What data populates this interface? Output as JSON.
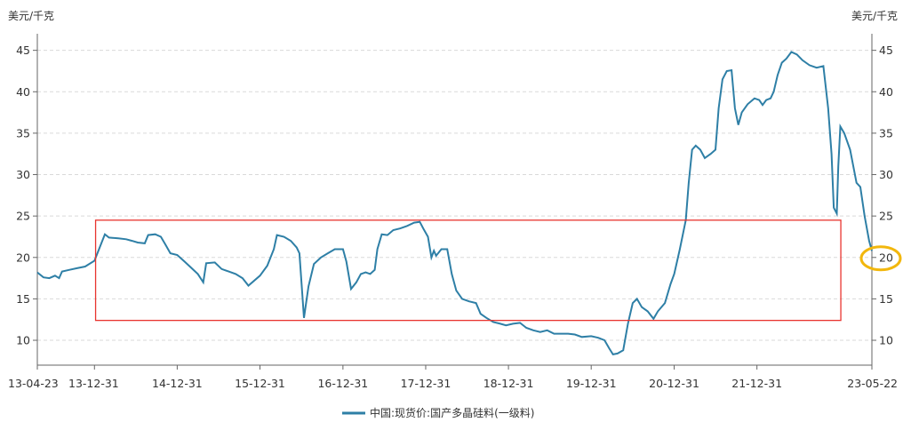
{
  "chart_data": {
    "type": "line",
    "left_unit": "美元/千克",
    "right_unit": "美元/千克",
    "y_ticks": [
      "10",
      "15",
      "20",
      "25",
      "30",
      "35",
      "40",
      "45"
    ],
    "ylim": [
      7,
      47
    ],
    "x_ticks": [
      "13-04-23",
      "13-12-31",
      "14-12-31",
      "15-12-31",
      "16-12-31",
      "17-12-31",
      "18-12-31",
      "19-12-31",
      "20-12-31",
      "21-12-31",
      "23-05-22"
    ],
    "xlim": [
      "2013-04-23",
      "2023-05-22"
    ],
    "grid": "horizontal dashed",
    "legend": "bottom-center",
    "series": [
      {
        "name": "中国:现货价:国产多晶硅料(一级料)",
        "color": "#2e7fa6",
        "points": [
          [
            "2013-04-23",
            18.2
          ],
          [
            "2013-05-20",
            17.6
          ],
          [
            "2013-06-15",
            17.5
          ],
          [
            "2013-07-10",
            17.8
          ],
          [
            "2013-07-28",
            17.5
          ],
          [
            "2013-08-10",
            18.3
          ],
          [
            "2013-09-10",
            18.5
          ],
          [
            "2013-10-15",
            18.7
          ],
          [
            "2013-11-20",
            18.9
          ],
          [
            "2013-12-31",
            19.6
          ],
          [
            "2014-01-20",
            21.0
          ],
          [
            "2014-02-15",
            22.8
          ],
          [
            "2014-03-05",
            22.4
          ],
          [
            "2014-04-15",
            22.3
          ],
          [
            "2014-05-20",
            22.2
          ],
          [
            "2014-06-15",
            22.0
          ],
          [
            "2014-07-10",
            21.8
          ],
          [
            "2014-08-10",
            21.7
          ],
          [
            "2014-08-25",
            22.7
          ],
          [
            "2014-09-25",
            22.8
          ],
          [
            "2014-10-20",
            22.5
          ],
          [
            "2014-11-10",
            21.5
          ],
          [
            "2014-12-01",
            20.5
          ],
          [
            "2014-12-31",
            20.3
          ],
          [
            "2015-02-01",
            19.5
          ],
          [
            "2015-03-01",
            18.8
          ],
          [
            "2015-04-01",
            18.0
          ],
          [
            "2015-04-25",
            17.0
          ],
          [
            "2015-05-08",
            19.3
          ],
          [
            "2015-06-15",
            19.4
          ],
          [
            "2015-07-15",
            18.6
          ],
          [
            "2015-08-15",
            18.3
          ],
          [
            "2015-09-15",
            18.0
          ],
          [
            "2015-10-15",
            17.5
          ],
          [
            "2015-11-10",
            16.6
          ],
          [
            "2015-12-31",
            17.8
          ],
          [
            "2016-02-01",
            19.0
          ],
          [
            "2016-03-01",
            21.0
          ],
          [
            "2016-03-15",
            22.7
          ],
          [
            "2016-04-15",
            22.5
          ],
          [
            "2016-05-15",
            22.0
          ],
          [
            "2016-06-10",
            21.2
          ],
          [
            "2016-06-22",
            20.5
          ],
          [
            "2016-07-01",
            17.0
          ],
          [
            "2016-07-12",
            12.7
          ],
          [
            "2016-08-01",
            16.5
          ],
          [
            "2016-08-25",
            19.2
          ],
          [
            "2016-09-25",
            20.0
          ],
          [
            "2016-10-25",
            20.5
          ],
          [
            "2016-11-25",
            21.0
          ],
          [
            "2016-12-31",
            21.0
          ],
          [
            "2017-01-15",
            19.5
          ],
          [
            "2017-02-05",
            16.2
          ],
          [
            "2017-02-28",
            17.0
          ],
          [
            "2017-03-20",
            18.0
          ],
          [
            "2017-04-10",
            18.2
          ],
          [
            "2017-04-30",
            18.0
          ],
          [
            "2017-05-20",
            18.5
          ],
          [
            "2017-06-01",
            21.0
          ],
          [
            "2017-06-20",
            22.8
          ],
          [
            "2017-07-15",
            22.7
          ],
          [
            "2017-08-10",
            23.3
          ],
          [
            "2017-09-10",
            23.5
          ],
          [
            "2017-10-10",
            23.8
          ],
          [
            "2017-11-10",
            24.2
          ],
          [
            "2017-12-05",
            24.3
          ],
          [
            "2017-12-20",
            23.5
          ],
          [
            "2018-01-10",
            22.5
          ],
          [
            "2018-01-25",
            20.0
          ],
          [
            "2018-02-05",
            20.8
          ],
          [
            "2018-02-15",
            20.2
          ],
          [
            "2018-03-10",
            21.0
          ],
          [
            "2018-04-05",
            21.0
          ],
          [
            "2018-04-25",
            18.0
          ],
          [
            "2018-05-15",
            16.0
          ],
          [
            "2018-06-10",
            15.0
          ],
          [
            "2018-07-10",
            14.7
          ],
          [
            "2018-08-10",
            14.5
          ],
          [
            "2018-08-30",
            13.2
          ],
          [
            "2018-09-25",
            12.7
          ],
          [
            "2018-10-25",
            12.2
          ],
          [
            "2018-11-25",
            12.0
          ],
          [
            "2018-12-20",
            11.8
          ],
          [
            "2019-01-20",
            12.0
          ],
          [
            "2019-02-20",
            12.1
          ],
          [
            "2019-03-20",
            11.5
          ],
          [
            "2019-04-20",
            11.2
          ],
          [
            "2019-05-20",
            11.0
          ],
          [
            "2019-06-20",
            11.2
          ],
          [
            "2019-07-20",
            10.8
          ],
          [
            "2019-08-20",
            10.8
          ],
          [
            "2019-09-20",
            10.8
          ],
          [
            "2019-10-20",
            10.7
          ],
          [
            "2019-11-20",
            10.4
          ],
          [
            "2019-12-31",
            10.5
          ],
          [
            "2020-01-31",
            10.3
          ],
          [
            "2020-02-28",
            10.0
          ],
          [
            "2020-03-20",
            9.0
          ],
          [
            "2020-04-05",
            8.3
          ],
          [
            "2020-04-25",
            8.4
          ],
          [
            "2020-05-20",
            8.8
          ],
          [
            "2020-06-10",
            12.0
          ],
          [
            "2020-07-01",
            14.5
          ],
          [
            "2020-07-20",
            15.0
          ],
          [
            "2020-08-10",
            14.0
          ],
          [
            "2020-09-05",
            13.5
          ],
          [
            "2020-10-01",
            12.6
          ],
          [
            "2020-10-20",
            13.5
          ],
          [
            "2020-11-20",
            14.5
          ],
          [
            "2020-12-15",
            16.8
          ],
          [
            "2020-12-31",
            18.0
          ],
          [
            "2021-01-25",
            21.0
          ],
          [
            "2021-02-20",
            24.5
          ],
          [
            "2021-03-05",
            29.0
          ],
          [
            "2021-03-20",
            33.0
          ],
          [
            "2021-04-05",
            33.5
          ],
          [
            "2021-04-25",
            33.0
          ],
          [
            "2021-05-15",
            32.0
          ],
          [
            "2021-06-10",
            32.5
          ],
          [
            "2021-07-01",
            33.0
          ],
          [
            "2021-07-15",
            38.0
          ],
          [
            "2021-08-01",
            41.5
          ],
          [
            "2021-08-20",
            42.5
          ],
          [
            "2021-09-10",
            42.6
          ],
          [
            "2021-09-25",
            38.0
          ],
          [
            "2021-10-10",
            36.0
          ],
          [
            "2021-10-25",
            37.5
          ],
          [
            "2021-11-20",
            38.5
          ],
          [
            "2021-12-20",
            39.2
          ],
          [
            "2022-01-10",
            39.0
          ],
          [
            "2022-01-25",
            38.4
          ],
          [
            "2022-02-10",
            39.0
          ],
          [
            "2022-03-01",
            39.2
          ],
          [
            "2022-03-15",
            40.0
          ],
          [
            "2022-04-01",
            42.0
          ],
          [
            "2022-04-20",
            43.5
          ],
          [
            "2022-05-10",
            44.0
          ],
          [
            "2022-06-01",
            44.8
          ],
          [
            "2022-06-25",
            44.5
          ],
          [
            "2022-07-20",
            43.8
          ],
          [
            "2022-08-20",
            43.2
          ],
          [
            "2022-09-20",
            42.9
          ],
          [
            "2022-10-20",
            43.1
          ],
          [
            "2022-11-10",
            38.0
          ],
          [
            "2022-11-25",
            32.5
          ],
          [
            "2022-12-05",
            26.0
          ],
          [
            "2022-12-18",
            25.3
          ],
          [
            "2022-12-25",
            31.0
          ],
          [
            "2023-01-03",
            35.8
          ],
          [
            "2023-01-20",
            35.0
          ],
          [
            "2023-02-15",
            33.0
          ],
          [
            "2023-03-15",
            29.0
          ],
          [
            "2023-04-01",
            28.5
          ],
          [
            "2023-04-20",
            25.0
          ],
          [
            "2023-05-10",
            22.0
          ],
          [
            "2023-05-22",
            20.8
          ]
        ]
      }
    ],
    "annotations": [
      {
        "type": "rectangle",
        "color": "#e8342f",
        "x_range": [
          "2014-01-05",
          "2023-01-05"
        ],
        "y_range": [
          12.4,
          24.5
        ]
      },
      {
        "type": "ellipse",
        "color": "#f2b70d",
        "around_value": 20
      }
    ]
  }
}
